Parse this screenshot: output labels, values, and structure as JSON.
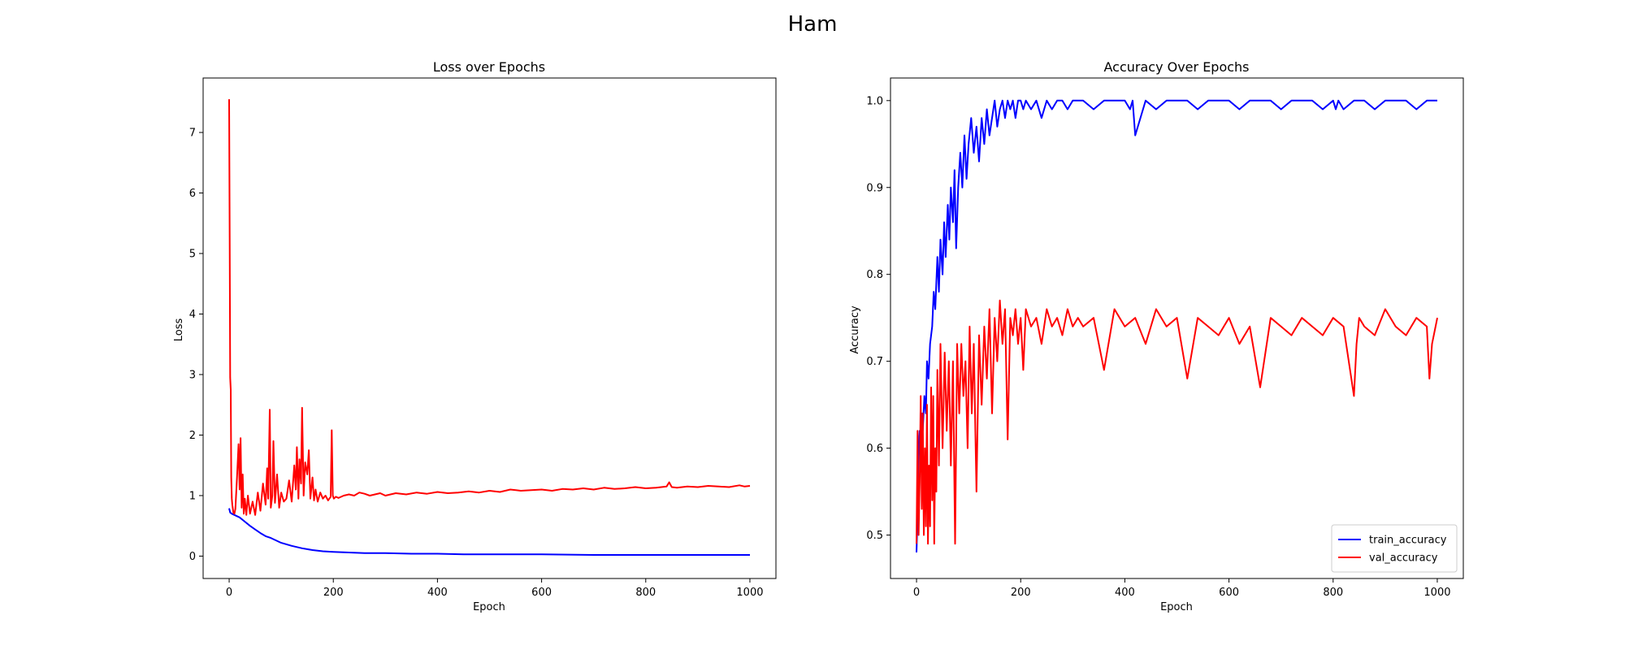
{
  "figure_title": "Ham",
  "chart_data": [
    {
      "type": "line",
      "title": "Loss over Epochs",
      "xlabel": "Epoch",
      "ylabel": "Loss",
      "xlim": [
        -50,
        1050
      ],
      "ylim": [
        -0.37,
        7.9
      ],
      "xticks": [
        0,
        200,
        400,
        600,
        800,
        1000
      ],
      "yticks": [
        0,
        1,
        2,
        3,
        4,
        5,
        6,
        7
      ],
      "grid": false,
      "legend": null,
      "series": [
        {
          "color": "#0000ff",
          "x": [
            0,
            2,
            5,
            10,
            15,
            20,
            30,
            40,
            50,
            60,
            70,
            80,
            90,
            100,
            120,
            140,
            160,
            180,
            200,
            230,
            260,
            300,
            350,
            400,
            450,
            500,
            600,
            700,
            800,
            900,
            1000
          ],
          "y": [
            0.79,
            0.72,
            0.7,
            0.68,
            0.66,
            0.64,
            0.57,
            0.5,
            0.44,
            0.38,
            0.33,
            0.3,
            0.26,
            0.22,
            0.17,
            0.13,
            0.1,
            0.08,
            0.07,
            0.06,
            0.05,
            0.05,
            0.04,
            0.04,
            0.03,
            0.03,
            0.03,
            0.02,
            0.02,
            0.02,
            0.02
          ]
        },
        {
          "color": "#ff0000",
          "x": [
            0,
            1,
            2,
            3,
            4,
            5,
            6,
            8,
            10,
            12,
            15,
            18,
            20,
            22,
            24,
            26,
            28,
            30,
            33,
            36,
            40,
            45,
            50,
            55,
            60,
            65,
            70,
            73,
            75,
            78,
            80,
            83,
            85,
            88,
            92,
            96,
            100,
            105,
            110,
            115,
            120,
            125,
            128,
            130,
            133,
            135,
            138,
            140,
            143,
            146,
            150,
            153,
            156,
            160,
            163,
            166,
            170,
            175,
            180,
            185,
            190,
            195,
            197,
            199,
            201,
            205,
            210,
            220,
            230,
            240,
            250,
            260,
            270,
            280,
            290,
            300,
            320,
            340,
            360,
            380,
            400,
            420,
            440,
            460,
            480,
            500,
            520,
            540,
            560,
            580,
            600,
            620,
            640,
            660,
            680,
            700,
            720,
            740,
            760,
            780,
            800,
            820,
            840,
            845,
            850,
            860,
            880,
            900,
            920,
            940,
            960,
            980,
            990,
            1000
          ],
          "y": [
            7.55,
            5.2,
            2.95,
            2.75,
            1.3,
            0.95,
            0.85,
            0.72,
            0.7,
            0.78,
            1.3,
            1.85,
            1.1,
            1.95,
            0.8,
            1.35,
            0.7,
            0.95,
            0.68,
            1.0,
            0.7,
            0.9,
            0.68,
            1.05,
            0.75,
            1.2,
            0.85,
            1.45,
            0.95,
            2.42,
            0.8,
            1.0,
            1.9,
            0.88,
            1.35,
            0.8,
            1.05,
            0.9,
            0.95,
            1.25,
            0.9,
            1.5,
            1.1,
            1.8,
            0.95,
            1.6,
            1.2,
            2.45,
            1.0,
            1.55,
            1.35,
            1.75,
            0.95,
            1.3,
            0.92,
            1.1,
            0.9,
            1.05,
            0.95,
            1.0,
            0.92,
            0.98,
            2.08,
            1.0,
            0.95,
            0.98,
            0.96,
            1.0,
            1.02,
            1.0,
            1.05,
            1.03,
            1.0,
            1.02,
            1.04,
            1.0,
            1.04,
            1.02,
            1.05,
            1.03,
            1.06,
            1.04,
            1.05,
            1.07,
            1.05,
            1.08,
            1.06,
            1.1,
            1.08,
            1.09,
            1.1,
            1.08,
            1.11,
            1.1,
            1.12,
            1.1,
            1.13,
            1.11,
            1.12,
            1.14,
            1.12,
            1.13,
            1.15,
            1.22,
            1.14,
            1.13,
            1.15,
            1.14,
            1.16,
            1.15,
            1.14,
            1.17,
            1.15,
            1.16
          ]
        }
      ]
    },
    {
      "type": "line",
      "title": "Accuracy Over Epochs",
      "xlabel": "Epoch",
      "ylabel": "Accuracy",
      "xlim": [
        -50,
        1050
      ],
      "ylim": [
        0.45,
        1.026
      ],
      "xticks": [
        0,
        200,
        400,
        600,
        800,
        1000
      ],
      "yticks": [
        0.5,
        0.6,
        0.7,
        0.8,
        0.9,
        1.0
      ],
      "grid": false,
      "legend": "lower-right",
      "series": [
        {
          "name": "train_accuracy",
          "color": "#0000ff",
          "x": [
            0,
            2,
            4,
            6,
            8,
            10,
            12,
            15,
            18,
            20,
            23,
            26,
            30,
            33,
            36,
            40,
            43,
            46,
            50,
            53,
            56,
            60,
            63,
            66,
            70,
            73,
            76,
            80,
            84,
            88,
            92,
            96,
            100,
            105,
            110,
            115,
            120,
            125,
            130,
            135,
            140,
            145,
            150,
            155,
            160,
            165,
            170,
            175,
            180,
            185,
            190,
            195,
            200,
            205,
            210,
            220,
            230,
            240,
            250,
            260,
            270,
            280,
            290,
            300,
            320,
            340,
            360,
            380,
            400,
            410,
            415,
            420,
            440,
            460,
            480,
            500,
            520,
            540,
            560,
            580,
            600,
            620,
            640,
            660,
            680,
            700,
            720,
            740,
            760,
            780,
            800,
            805,
            810,
            820,
            840,
            860,
            880,
            900,
            920,
            940,
            960,
            980,
            1000
          ],
          "y": [
            0.48,
            0.52,
            0.6,
            0.62,
            0.58,
            0.64,
            0.62,
            0.66,
            0.64,
            0.7,
            0.68,
            0.72,
            0.74,
            0.78,
            0.76,
            0.82,
            0.78,
            0.84,
            0.8,
            0.86,
            0.82,
            0.88,
            0.84,
            0.9,
            0.86,
            0.92,
            0.83,
            0.9,
            0.94,
            0.9,
            0.96,
            0.91,
            0.95,
            0.98,
            0.94,
            0.97,
            0.93,
            0.98,
            0.95,
            0.99,
            0.96,
            0.98,
            1.0,
            0.97,
            0.99,
            1.0,
            0.98,
            1.0,
            0.99,
            1.0,
            0.98,
            1.0,
            1.0,
            0.99,
            1.0,
            0.99,
            1.0,
            0.98,
            1.0,
            0.99,
            1.0,
            1.0,
            0.99,
            1.0,
            1.0,
            0.99,
            1.0,
            1.0,
            1.0,
            0.99,
            1.0,
            0.96,
            1.0,
            0.99,
            1.0,
            1.0,
            1.0,
            0.99,
            1.0,
            1.0,
            1.0,
            0.99,
            1.0,
            1.0,
            1.0,
            0.99,
            1.0,
            1.0,
            1.0,
            0.99,
            1.0,
            0.99,
            1.0,
            0.99,
            1.0,
            1.0,
            0.99,
            1.0,
            1.0,
            1.0,
            0.99,
            1.0,
            1.0
          ]
        },
        {
          "name": "val_accuracy",
          "color": "#ff0000",
          "x": [
            0,
            2,
            4,
            6,
            8,
            10,
            12,
            14,
            16,
            18,
            20,
            22,
            24,
            26,
            28,
            30,
            32,
            34,
            36,
            38,
            40,
            43,
            46,
            50,
            54,
            58,
            62,
            66,
            70,
            74,
            78,
            82,
            86,
            90,
            94,
            98,
            102,
            106,
            110,
            115,
            120,
            125,
            130,
            135,
            140,
            145,
            150,
            155,
            160,
            165,
            170,
            175,
            180,
            185,
            190,
            195,
            200,
            205,
            210,
            220,
            230,
            240,
            250,
            260,
            270,
            280,
            290,
            300,
            310,
            320,
            340,
            360,
            380,
            400,
            420,
            440,
            460,
            480,
            500,
            520,
            540,
            560,
            580,
            600,
            620,
            640,
            660,
            680,
            700,
            720,
            740,
            760,
            780,
            800,
            820,
            840,
            845,
            850,
            860,
            880,
            900,
            920,
            940,
            960,
            980,
            985,
            990,
            1000
          ],
          "y": [
            0.49,
            0.62,
            0.5,
            0.56,
            0.66,
            0.53,
            0.64,
            0.5,
            0.6,
            0.51,
            0.65,
            0.49,
            0.58,
            0.51,
            0.67,
            0.54,
            0.66,
            0.49,
            0.6,
            0.55,
            0.69,
            0.58,
            0.72,
            0.6,
            0.71,
            0.62,
            0.7,
            0.58,
            0.7,
            0.49,
            0.72,
            0.64,
            0.72,
            0.66,
            0.7,
            0.6,
            0.74,
            0.64,
            0.72,
            0.55,
            0.73,
            0.65,
            0.74,
            0.68,
            0.76,
            0.64,
            0.75,
            0.7,
            0.77,
            0.72,
            0.76,
            0.61,
            0.75,
            0.73,
            0.76,
            0.72,
            0.75,
            0.69,
            0.76,
            0.74,
            0.75,
            0.72,
            0.76,
            0.74,
            0.75,
            0.73,
            0.76,
            0.74,
            0.75,
            0.74,
            0.75,
            0.69,
            0.76,
            0.74,
            0.75,
            0.72,
            0.76,
            0.74,
            0.75,
            0.68,
            0.75,
            0.74,
            0.73,
            0.75,
            0.72,
            0.74,
            0.67,
            0.75,
            0.74,
            0.73,
            0.75,
            0.74,
            0.73,
            0.75,
            0.74,
            0.66,
            0.72,
            0.75,
            0.74,
            0.73,
            0.76,
            0.74,
            0.73,
            0.75,
            0.74,
            0.68,
            0.72,
            0.75
          ]
        }
      ]
    }
  ]
}
